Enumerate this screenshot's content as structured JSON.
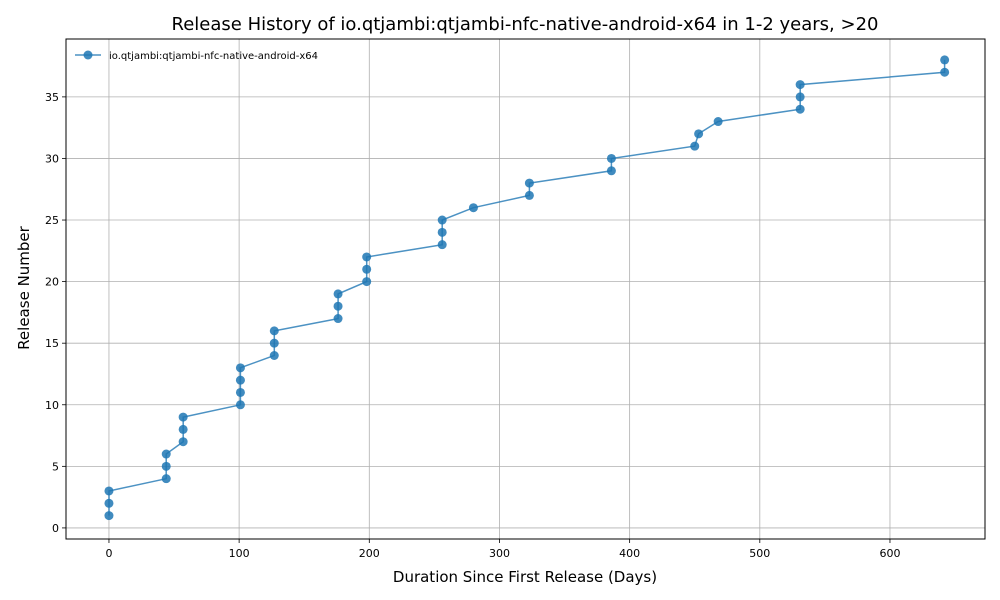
{
  "chart_data": {
    "type": "line",
    "title": "Release History of io.qtjambi:qtjambi-nfc-native-android-x64 in 1-2 years, >20",
    "xlabel": "Duration Since First Release (Days)",
    "ylabel": "Release Number",
    "xlim": [
      -33,
      673
    ],
    "ylim": [
      -0.9,
      39.7
    ],
    "xticks": [
      0,
      100,
      200,
      300,
      400,
      500,
      600
    ],
    "yticks": [
      0,
      5,
      10,
      15,
      20,
      25,
      30,
      35
    ],
    "grid": true,
    "legend_position": "top-left",
    "series": [
      {
        "name": "io.qtjambi:qtjambi-nfc-native-android-x64",
        "color": "#1f77b4",
        "x": [
          0,
          0,
          0,
          44,
          44,
          44,
          57,
          57,
          57,
          101,
          101,
          101,
          101,
          127,
          127,
          127,
          176,
          176,
          176,
          198,
          198,
          198,
          256,
          256,
          256,
          280,
          323,
          323,
          386,
          386,
          450,
          453,
          468,
          531,
          531,
          531,
          642,
          642
        ],
        "y": [
          1,
          2,
          3,
          4,
          5,
          6,
          7,
          8,
          9,
          10,
          11,
          12,
          13,
          14,
          15,
          16,
          17,
          18,
          19,
          20,
          21,
          22,
          23,
          24,
          25,
          26,
          27,
          28,
          29,
          30,
          31,
          32,
          33,
          34,
          35,
          36,
          37,
          38
        ]
      }
    ]
  }
}
